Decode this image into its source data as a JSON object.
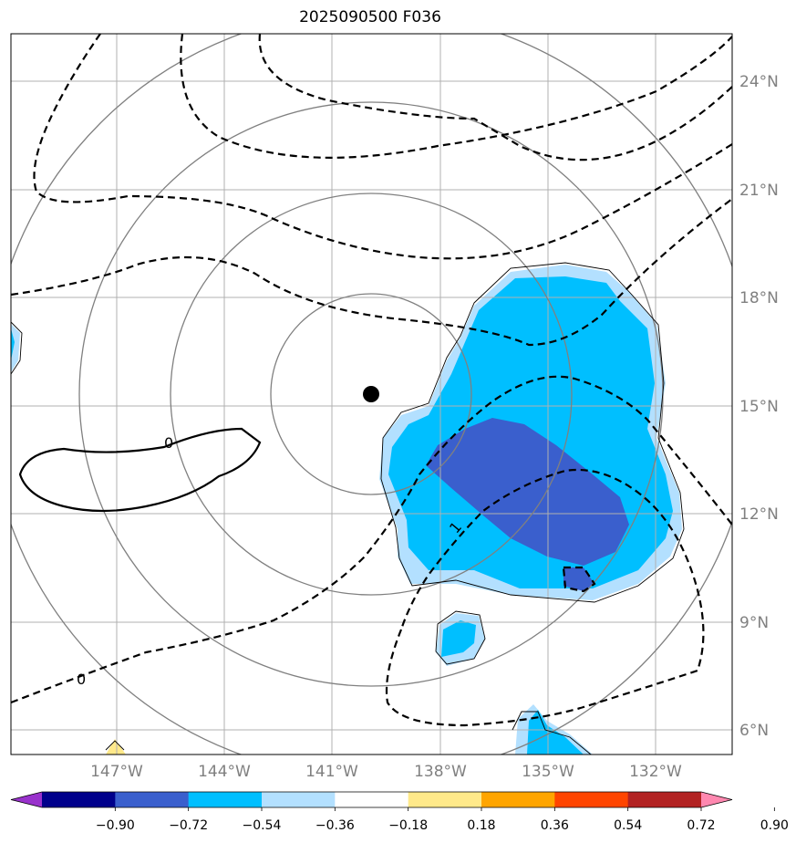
{
  "title": "2025090500 F036",
  "map": {
    "lat_labels": [
      "24°N",
      "21°N",
      "18°N",
      "15°N",
      "12°N",
      "9°N",
      "6°N"
    ],
    "lon_labels": [
      "147°W",
      "144°W",
      "141°W",
      "138°W",
      "135°W",
      "132°W"
    ],
    "storm_center": {
      "lat": 15.3,
      "lon": -139.0
    },
    "contour_labels": [
      "0",
      "0",
      "1"
    ],
    "fill_colors": {
      "light_blue": "#b3e0ff",
      "cyan": "#00bfff",
      "royal_blue": "#3a5fcd"
    },
    "contour_color": "#000000",
    "grid_color": "#b0b0b0",
    "ring_color": "#808080"
  },
  "colorbar": {
    "ticks": [
      "−0.90",
      "−0.72",
      "−0.54",
      "−0.36",
      "−0.18",
      "0.18",
      "0.36",
      "0.54",
      "0.72",
      "0.90"
    ],
    "colors": [
      "#9932cc",
      "#00008b",
      "#3a5fcd",
      "#00bfff",
      "#b3e0ff",
      "#ffffff",
      "#ffe98a",
      "#ffa500",
      "#ff4500",
      "#b22222",
      "#ff88b0"
    ]
  }
}
